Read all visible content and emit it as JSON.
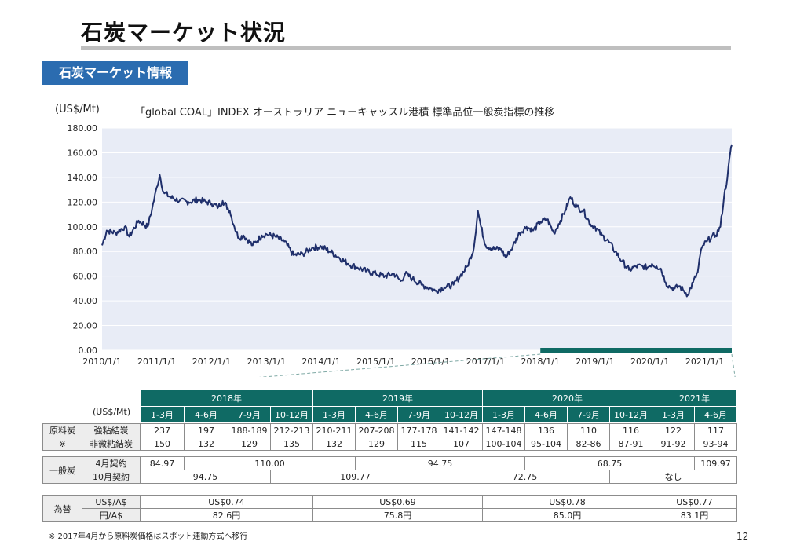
{
  "title": "石炭マーケット状況",
  "section_label": "石炭マーケット情報",
  "unit_label": "(US$/Mt)",
  "chart_title": "「global COAL」INDEX オーストラリア ニューキャッスル港積 標準品位一般炭指標の推移",
  "chart_data": {
    "type": "line",
    "title": "「global COAL」INDEX オーストラリア ニューキャッスル港積 標準品位一般炭指標の推移",
    "ylabel": "(US$/Mt)",
    "xlabel": "",
    "ylim": [
      0,
      180
    ],
    "yticks": [
      "180.00",
      "160.00",
      "140.00",
      "120.00",
      "100.00",
      "80.00",
      "60.00",
      "40.00",
      "20.00",
      "0.00"
    ],
    "xlim": [
      "2010-01-01",
      "2021-06-30"
    ],
    "xticks": [
      "2010/1/1",
      "2011/1/1",
      "2012/1/1",
      "2013/1/1",
      "2014/1/1",
      "2015/1/1",
      "2016/1/1",
      "2017/1/1",
      "2018/1/1",
      "2019/1/1",
      "2020/1/1",
      "2021/1/1"
    ],
    "grid": true,
    "highlight_range": [
      "2018-01-01",
      "2021-06-30"
    ],
    "color": "#1f2f6b",
    "series": [
      {
        "points": [
          [
            "2010-01-01",
            85
          ],
          [
            "2010-02-01",
            97
          ],
          [
            "2010-04-01",
            95
          ],
          [
            "2010-06-01",
            100
          ],
          [
            "2010-07-01",
            92
          ],
          [
            "2010-09-01",
            105
          ],
          [
            "2010-11-01",
            100
          ],
          [
            "2010-12-01",
            115
          ],
          [
            "2011-01-01",
            132
          ],
          [
            "2011-01-20",
            142
          ],
          [
            "2011-02-15",
            128
          ],
          [
            "2011-04-01",
            124
          ],
          [
            "2011-06-01",
            121
          ],
          [
            "2011-08-01",
            120
          ],
          [
            "2011-10-01",
            122
          ],
          [
            "2011-12-01",
            120
          ],
          [
            "2012-01-01",
            119
          ],
          [
            "2012-02-15",
            116
          ],
          [
            "2012-03-15",
            121
          ],
          [
            "2012-05-01",
            113
          ],
          [
            "2012-06-01",
            100
          ],
          [
            "2012-07-01",
            91
          ],
          [
            "2012-08-01",
            93
          ],
          [
            "2012-10-01",
            85
          ],
          [
            "2012-12-01",
            93
          ],
          [
            "2013-01-01",
            94
          ],
          [
            "2013-03-01",
            92
          ],
          [
            "2013-05-01",
            88
          ],
          [
            "2013-07-01",
            77
          ],
          [
            "2013-09-01",
            78
          ],
          [
            "2013-11-01",
            83
          ],
          [
            "2014-01-01",
            84
          ],
          [
            "2014-03-01",
            80
          ],
          [
            "2014-05-01",
            75
          ],
          [
            "2014-07-01",
            70
          ],
          [
            "2014-09-01",
            67
          ],
          [
            "2014-11-01",
            64
          ],
          [
            "2015-01-01",
            62
          ],
          [
            "2015-03-01",
            60
          ],
          [
            "2015-05-01",
            62
          ],
          [
            "2015-06-15",
            56
          ],
          [
            "2015-07-15",
            62
          ],
          [
            "2015-09-01",
            58
          ],
          [
            "2015-11-01",
            53
          ],
          [
            "2016-01-01",
            50
          ],
          [
            "2016-02-01",
            48
          ],
          [
            "2016-04-01",
            51
          ],
          [
            "2016-06-01",
            53
          ],
          [
            "2016-07-15",
            60
          ],
          [
            "2016-09-01",
            68
          ],
          [
            "2016-10-15",
            83
          ],
          [
            "2016-11-10",
            113
          ],
          [
            "2016-12-01",
            100
          ],
          [
            "2017-01-01",
            85
          ],
          [
            "2017-03-01",
            82
          ],
          [
            "2017-04-15",
            82
          ],
          [
            "2017-05-15",
            75
          ],
          [
            "2017-07-01",
            84
          ],
          [
            "2017-08-15",
            95
          ],
          [
            "2017-10-01",
            100
          ],
          [
            "2017-11-15",
            97
          ],
          [
            "2018-01-01",
            104
          ],
          [
            "2018-02-15",
            106
          ],
          [
            "2018-04-01",
            95
          ],
          [
            "2018-05-15",
            105
          ],
          [
            "2018-06-15",
            113
          ],
          [
            "2018-07-20",
            124
          ],
          [
            "2018-09-01",
            116
          ],
          [
            "2018-10-15",
            113
          ],
          [
            "2018-12-01",
            102
          ],
          [
            "2019-01-01",
            100
          ],
          [
            "2019-02-15",
            93
          ],
          [
            "2019-04-01",
            88
          ],
          [
            "2019-05-15",
            80
          ],
          [
            "2019-07-01",
            72
          ],
          [
            "2019-08-15",
            65
          ],
          [
            "2019-10-01",
            68
          ],
          [
            "2019-11-15",
            68
          ],
          [
            "2019-12-15",
            67
          ],
          [
            "2020-01-15",
            70
          ],
          [
            "2020-02-15",
            68
          ],
          [
            "2020-03-15",
            66
          ],
          [
            "2020-04-15",
            55
          ],
          [
            "2020-05-15",
            51
          ],
          [
            "2020-06-15",
            50
          ],
          [
            "2020-07-15",
            52
          ],
          [
            "2020-08-15",
            48
          ],
          [
            "2020-09-10",
            45
          ],
          [
            "2020-10-15",
            55
          ],
          [
            "2020-11-15",
            63
          ],
          [
            "2020-12-01",
            77
          ],
          [
            "2020-12-20",
            85
          ],
          [
            "2021-01-15",
            88
          ],
          [
            "2021-02-15",
            92
          ],
          [
            "2021-03-15",
            93
          ],
          [
            "2021-04-15",
            100
          ],
          [
            "2021-05-10",
            125
          ],
          [
            "2021-06-01",
            140
          ],
          [
            "2021-06-20",
            160
          ],
          [
            "2021-06-30",
            166
          ]
        ]
      }
    ]
  },
  "table": {
    "unit": "(US$/Mt)",
    "years": [
      {
        "label": "2018年",
        "span": 4
      },
      {
        "label": "2019年",
        "span": 4
      },
      {
        "label": "2020年",
        "span": 4
      },
      {
        "label": "2021年",
        "span": 2
      }
    ],
    "quarters": [
      "1-3月",
      "4-6月",
      "7-9月",
      "10-12月",
      "1-3月",
      "4-6月",
      "7-9月",
      "10-12月",
      "1-3月",
      "4-6月",
      "7-9月",
      "10-12月",
      "1-3月",
      "4-6月"
    ],
    "coking_group": [
      "原料炭",
      "※"
    ],
    "coking_rows": [
      {
        "label": "強粘結炭",
        "values": [
          "237",
          "197",
          "188-189",
          "212-213",
          "210-211",
          "207-208",
          "177-178",
          "141-142",
          "147-148",
          "136",
          "110",
          "116",
          "122",
          "117"
        ]
      },
      {
        "label": "非微粘結炭",
        "values": [
          "150",
          "132",
          "129",
          "135",
          "132",
          "129",
          "115",
          "107",
          "100-104",
          "95-104",
          "82-86",
          "87-91",
          "91-92",
          "93-94"
        ]
      }
    ],
    "steam_group": "一般炭",
    "steam_rows": [
      {
        "label": "4月契約",
        "cells": [
          {
            "v": "84.97",
            "span": 1
          },
          {
            "v": "110.00",
            "span": 4
          },
          {
            "v": "94.75",
            "span": 4
          },
          {
            "v": "68.75",
            "span": 4
          },
          {
            "v": "109.97",
            "span": 1
          }
        ]
      },
      {
        "label": "10月契約",
        "cells": [
          {
            "v": "94.75",
            "span": 3
          },
          {
            "v": "109.77",
            "span": 4
          },
          {
            "v": "72.75",
            "span": 4
          },
          {
            "v": "なし",
            "span": 3
          }
        ]
      }
    ],
    "fx_group": "為替",
    "fx_rows": [
      {
        "label": "US$/A$",
        "cells": [
          {
            "v": "US$0.74",
            "span": 4
          },
          {
            "v": "US$0.69",
            "span": 4
          },
          {
            "v": "US$0.78",
            "span": 4
          },
          {
            "v": "US$0.77",
            "span": 2
          }
        ]
      },
      {
        "label": "円/A$",
        "cells": [
          {
            "v": "82.6円",
            "span": 4
          },
          {
            "v": "75.8円",
            "span": 4
          },
          {
            "v": "85.0円",
            "span": 4
          },
          {
            "v": "83.1円",
            "span": 2
          }
        ]
      }
    ]
  },
  "footnote": "※ 2017年4月から原料炭価格はスポット連動方式へ移行",
  "page_number": "12"
}
